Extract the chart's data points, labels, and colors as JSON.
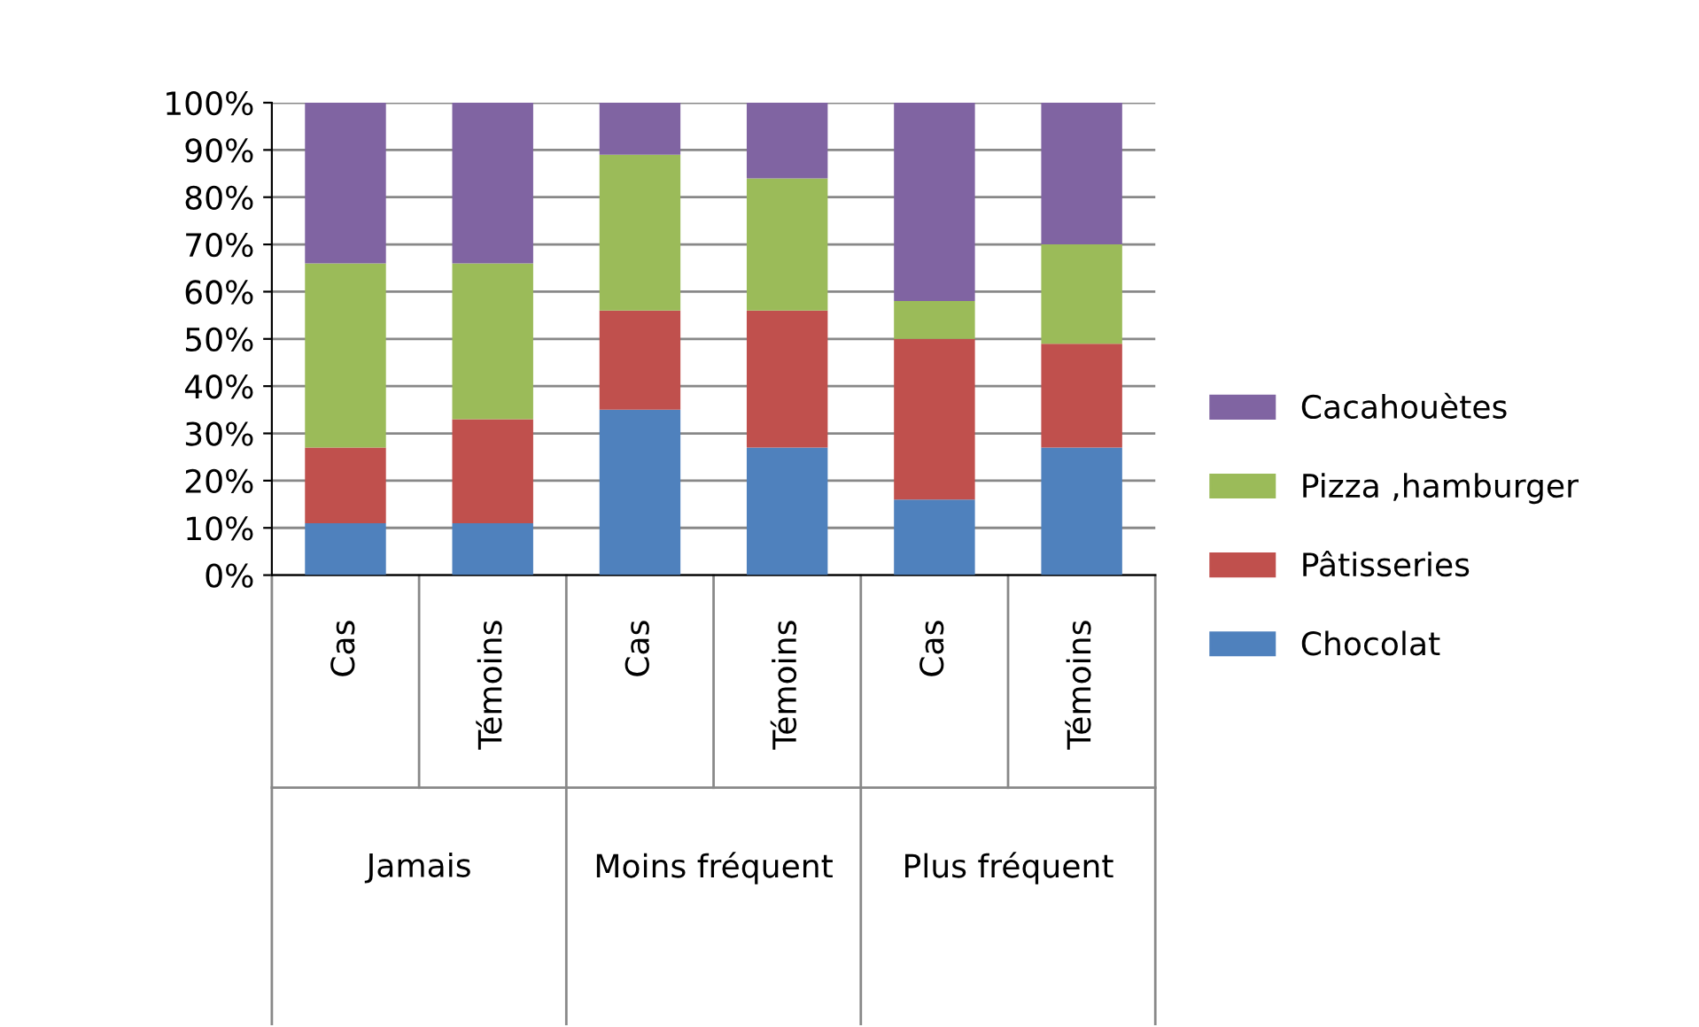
{
  "chart_data": {
    "type": "bar",
    "stacked": true,
    "categories": [
      "Cas",
      "Témoins",
      "Cas",
      "Témoins",
      "Cas",
      "Témoins"
    ],
    "series": [
      {
        "name": "Chocolat",
        "color": "#4f81bd",
        "values": [
          11,
          11,
          35,
          27,
          16,
          27
        ]
      },
      {
        "name": "Pâtisseries",
        "color": "#c0504d",
        "values": [
          16,
          22,
          21,
          29,
          34,
          22
        ]
      },
      {
        "name": "Pizza ,hamburger",
        "color": "#9bbb59",
        "values": [
          39,
          33,
          33,
          28,
          8,
          21
        ]
      },
      {
        "name": "Cacahouètes",
        "color": "#8064a2",
        "values": [
          34,
          34,
          11,
          16,
          42,
          30
        ]
      }
    ],
    "annotations": [
      "Jamais",
      "Moins fréquent",
      "Plus fréquent"
    ],
    "ylim": [
      0,
      100
    ],
    "yticks": [
      {
        "value": 0,
        "label": "0%"
      },
      {
        "value": 10,
        "label": "10%"
      },
      {
        "value": 20,
        "label": "20%"
      },
      {
        "value": 30,
        "label": "30%"
      },
      {
        "value": 40,
        "label": "40%"
      },
      {
        "value": 50,
        "label": "50%"
      },
      {
        "value": 60,
        "label": "60%"
      },
      {
        "value": 70,
        "label": "70%"
      },
      {
        "value": 80,
        "label": "80%"
      },
      {
        "value": 90,
        "label": "90%"
      },
      {
        "value": 100,
        "label": "100%"
      }
    ],
    "grid": "y",
    "legend": "right"
  }
}
